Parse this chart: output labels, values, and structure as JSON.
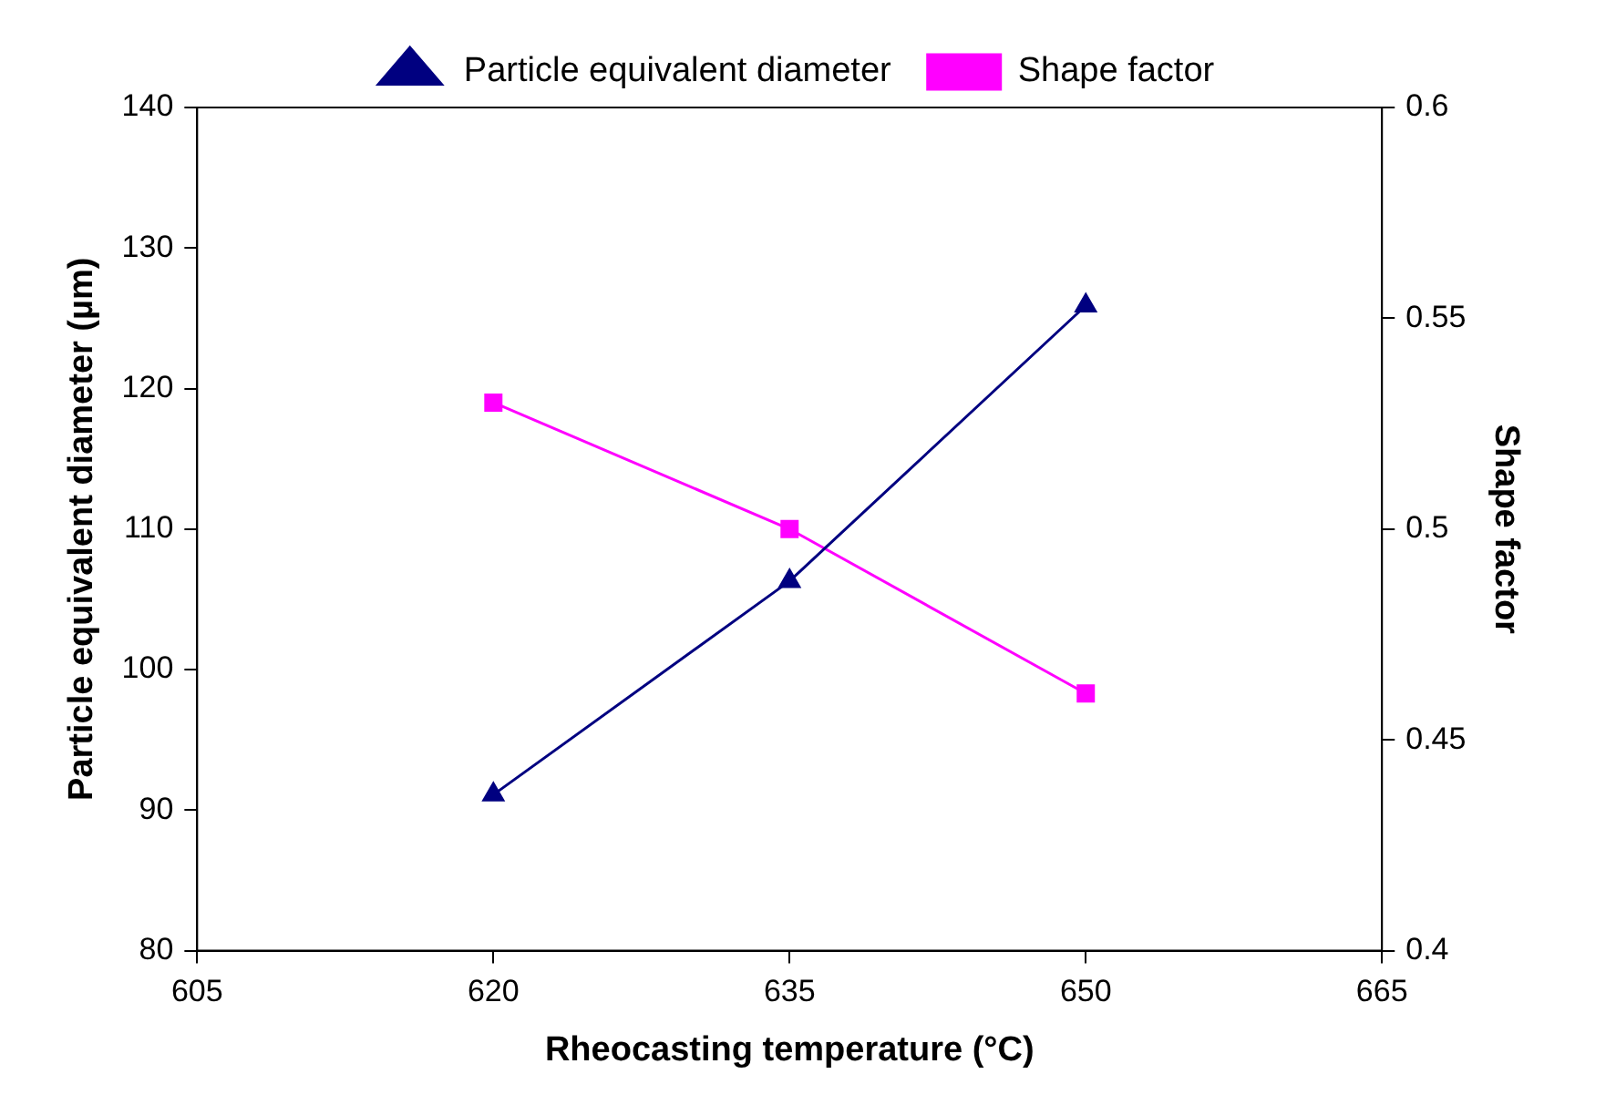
{
  "chart_data": {
    "type": "line",
    "xlabel": "Rheocasting temperature (°C)",
    "ylabel": "Particle equivalent diameter (µm)",
    "y2label": "Shape factor",
    "x": [
      620,
      635,
      650
    ],
    "series": [
      {
        "name": "Particle equivalent diameter",
        "color": "#000080",
        "values": [
          91.1,
          106.3,
          125.9
        ],
        "marker": "triangle"
      },
      {
        "name": "Shape factor",
        "color": "#ff00ff",
        "values": [
          0.53,
          0.5,
          0.461
        ],
        "axis": "y2",
        "marker": "square"
      }
    ],
    "xlim": [
      605,
      665
    ],
    "xticks": [
      605,
      620,
      635,
      650,
      665
    ],
    "ylim": [
      80,
      140
    ],
    "yticks": [
      80,
      90,
      100,
      110,
      120,
      130,
      140
    ],
    "y2lim": [
      0.4,
      0.6
    ],
    "y2ticks": [
      0.4,
      0.45,
      0.5,
      0.55,
      0.6
    ],
    "grid": false,
    "legend": "top",
    "line_style": "solid"
  }
}
